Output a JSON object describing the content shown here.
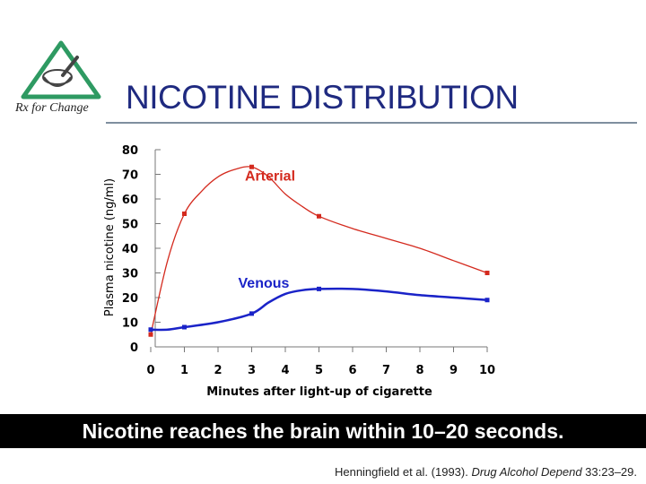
{
  "slide": {
    "title": "NICOTINE DISTRIBUTION",
    "banner": "Nicotine reaches the brain within 10–20 seconds.",
    "citation": {
      "authors": "Henningfield et al. (1993). ",
      "journal": "Drug Alcohol Depend",
      "ref": " 33:23–29."
    },
    "logo_text": "Rx for Change",
    "colors": {
      "title": "#1f2a80",
      "logo": "#2e9a62",
      "banner": "#000000"
    }
  },
  "chart_data": {
    "type": "line",
    "ylabel": "Plasma nicotine (ng/ml)",
    "xlabel": "Minutes after light-up of cigarette",
    "xlim": [
      0,
      10
    ],
    "ylim": [
      0,
      80
    ],
    "xticks": [
      "0",
      "1",
      "2",
      "3",
      "4",
      "5",
      "6",
      "7",
      "8",
      "9",
      "10"
    ],
    "yticks": [
      "0",
      "10",
      "20",
      "30",
      "40",
      "50",
      "60",
      "70",
      "80"
    ],
    "series": [
      {
        "name": "Arterial",
        "color": "#d42a1e",
        "markers": [
          [
            0,
            5
          ],
          [
            1,
            54
          ],
          [
            3,
            73
          ],
          [
            5,
            53
          ],
          [
            10,
            30
          ]
        ],
        "curve": [
          [
            0,
            5
          ],
          [
            0.5,
            35
          ],
          [
            1,
            54
          ],
          [
            1.5,
            63
          ],
          [
            2,
            69
          ],
          [
            2.5,
            72
          ],
          [
            3,
            73
          ],
          [
            3.5,
            69
          ],
          [
            4,
            62
          ],
          [
            4.5,
            57
          ],
          [
            5,
            53
          ],
          [
            6,
            48
          ],
          [
            7,
            44
          ],
          [
            8,
            40
          ],
          [
            9,
            35
          ],
          [
            10,
            30
          ]
        ]
      },
      {
        "name": "Venous",
        "color": "#1a23c8",
        "markers": [
          [
            0,
            7
          ],
          [
            1,
            8
          ],
          [
            3,
            13.5
          ],
          [
            5,
            23.5
          ],
          [
            10,
            19
          ]
        ],
        "curve": [
          [
            0,
            7
          ],
          [
            0.5,
            7
          ],
          [
            1,
            8
          ],
          [
            2,
            10
          ],
          [
            3,
            13.5
          ],
          [
            3.5,
            18
          ],
          [
            4,
            21.5
          ],
          [
            4.5,
            23
          ],
          [
            5,
            23.5
          ],
          [
            6,
            23.5
          ],
          [
            7,
            22.5
          ],
          [
            8,
            21
          ],
          [
            9,
            20
          ],
          [
            10,
            19
          ]
        ]
      }
    ]
  }
}
